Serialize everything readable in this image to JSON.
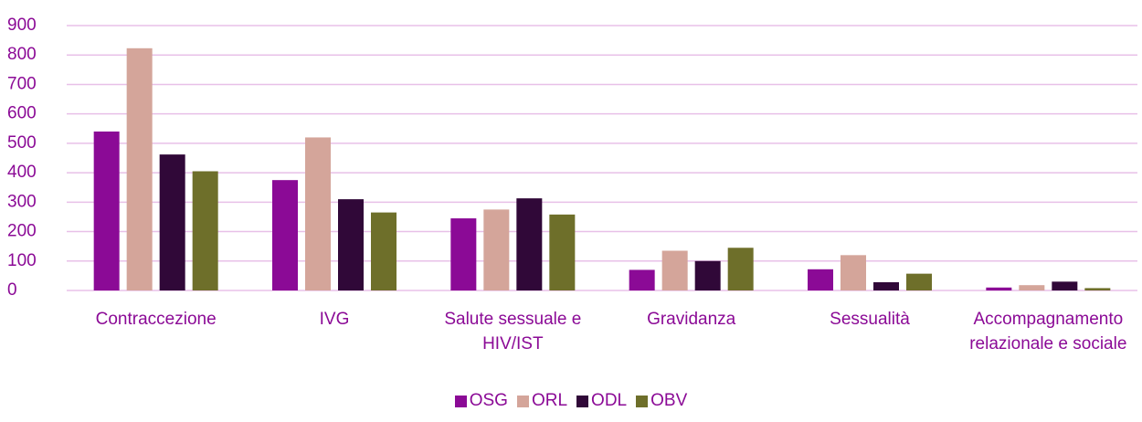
{
  "chart_data": {
    "type": "bar",
    "categories": [
      "Contraccezione",
      "IVG",
      "Salute sessuale e HIV/IST",
      "Gravidanza",
      "Sessualità",
      "Accompagnamento relazionale e sociale"
    ],
    "series": [
      {
        "name": "OSG",
        "color": "#8b0a96",
        "values": [
          540,
          375,
          245,
          70,
          72,
          10
        ]
      },
      {
        "name": "ORL",
        "color": "#d4a59a",
        "values": [
          823,
          520,
          275,
          135,
          120,
          18
        ]
      },
      {
        "name": "ODL",
        "color": "#300838",
        "values": [
          462,
          310,
          313,
          100,
          28,
          30
        ]
      },
      {
        "name": "OBV",
        "color": "#6e6f2a",
        "values": [
          405,
          265,
          258,
          145,
          57,
          8
        ]
      }
    ],
    "ylim": [
      0,
      900
    ],
    "yticks": [
      0,
      100,
      200,
      300,
      400,
      500,
      600,
      700,
      800,
      900
    ],
    "grid": true,
    "legend": "bottom"
  }
}
